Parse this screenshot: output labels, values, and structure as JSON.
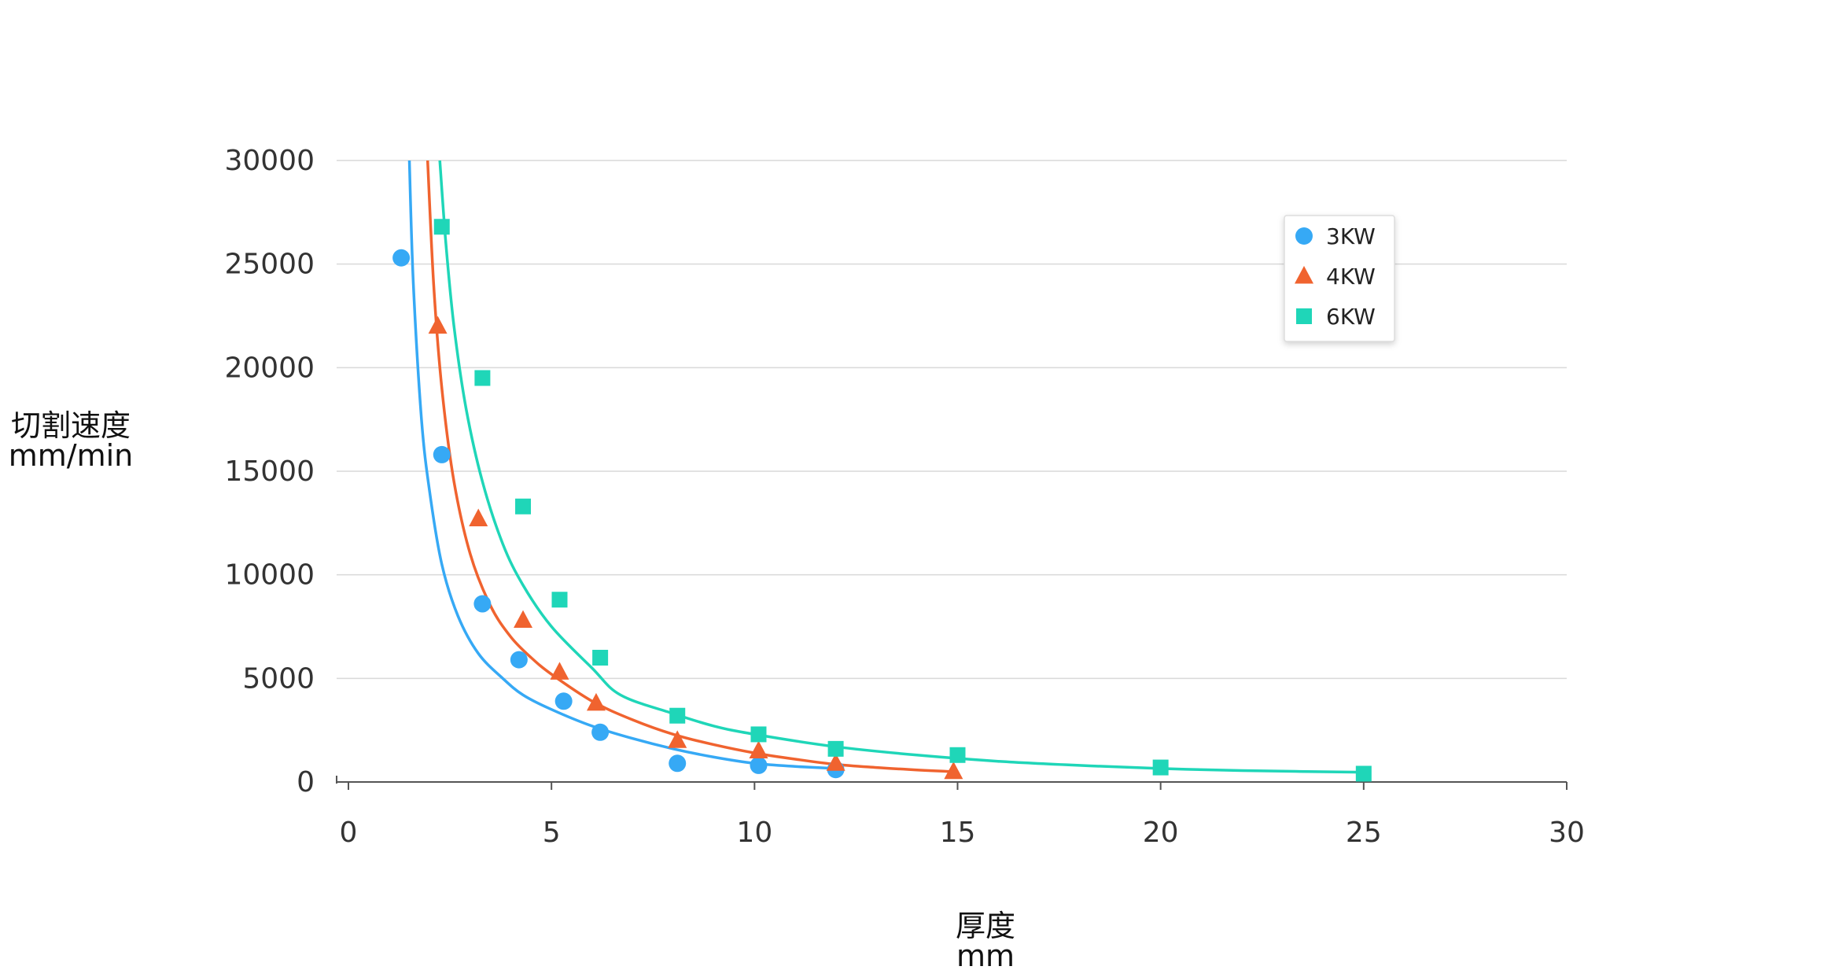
{
  "chart_data": {
    "type": "scatter",
    "title": "",
    "xlabel": [
      "厚度",
      "mm"
    ],
    "ylabel": [
      "切割速度",
      "mm/min"
    ],
    "xlim": [
      0,
      30
    ],
    "ylim": [
      0,
      30000
    ],
    "xticks": [
      "0",
      "5",
      "10",
      "15",
      "20",
      "25",
      "30"
    ],
    "yticks": [
      "0",
      "5000",
      "10000",
      "15000",
      "20000",
      "25000",
      "30000"
    ],
    "legend_position": "top-right",
    "series": [
      {
        "name": "3KW",
        "color": "#36a9f5",
        "marker": "circle",
        "points": [
          [
            1.3,
            25300
          ],
          [
            2.3,
            15800
          ],
          [
            3.3,
            8600
          ],
          [
            4.2,
            5900
          ],
          [
            5.3,
            3900
          ],
          [
            6.2,
            2400
          ],
          [
            8.1,
            900
          ],
          [
            10.1,
            800
          ],
          [
            12.0,
            600
          ]
        ],
        "fit": [
          [
            1.5,
            30000
          ],
          [
            1.6,
            24000
          ],
          [
            1.8,
            17500
          ],
          [
            2.0,
            14000
          ],
          [
            2.3,
            10500
          ],
          [
            2.7,
            8000
          ],
          [
            3.2,
            6200
          ],
          [
            3.8,
            5000
          ],
          [
            4.3,
            4200
          ],
          [
            5.0,
            3500
          ],
          [
            6.0,
            2700
          ],
          [
            7.0,
            2100
          ],
          [
            8.0,
            1600
          ],
          [
            9.0,
            1200
          ],
          [
            10.0,
            900
          ],
          [
            11.0,
            750
          ],
          [
            12.0,
            650
          ]
        ]
      },
      {
        "name": "4KW",
        "color": "#f0632f",
        "marker": "triangle",
        "points": [
          [
            2.2,
            22000
          ],
          [
            3.2,
            12700
          ],
          [
            4.3,
            7800
          ],
          [
            5.2,
            5300
          ],
          [
            6.1,
            3800
          ],
          [
            8.1,
            2000
          ],
          [
            10.1,
            1500
          ],
          [
            12.0,
            900
          ],
          [
            14.9,
            500
          ]
        ],
        "fit": [
          [
            1.95,
            30000
          ],
          [
            2.1,
            24000
          ],
          [
            2.3,
            19000
          ],
          [
            2.6,
            14500
          ],
          [
            3.0,
            11000
          ],
          [
            3.5,
            8500
          ],
          [
            4.0,
            7000
          ],
          [
            4.5,
            6000
          ],
          [
            5.0,
            5200
          ],
          [
            6.0,
            3900
          ],
          [
            7.0,
            3000
          ],
          [
            8.0,
            2300
          ],
          [
            9.0,
            1800
          ],
          [
            10.0,
            1400
          ],
          [
            11.0,
            1100
          ],
          [
            12.0,
            850
          ],
          [
            13.0,
            700
          ],
          [
            14.0,
            580
          ],
          [
            14.9,
            500
          ]
        ]
      },
      {
        "name": "6KW",
        "color": "#1fd6b8",
        "marker": "square",
        "points": [
          [
            2.3,
            26800
          ],
          [
            3.3,
            19500
          ],
          [
            4.3,
            13300
          ],
          [
            5.2,
            8800
          ],
          [
            6.2,
            6000
          ],
          [
            8.1,
            3200
          ],
          [
            10.1,
            2300
          ],
          [
            12.0,
            1600
          ],
          [
            15.0,
            1300
          ],
          [
            20.0,
            700
          ],
          [
            25.0,
            400
          ]
        ],
        "fit": [
          [
            2.25,
            30000
          ],
          [
            2.4,
            26000
          ],
          [
            2.6,
            22000
          ],
          [
            2.9,
            18000
          ],
          [
            3.3,
            14500
          ],
          [
            3.8,
            11500
          ],
          [
            4.3,
            9500
          ],
          [
            5.0,
            7500
          ],
          [
            6.0,
            5500
          ],
          [
            6.7,
            4200
          ],
          [
            8.0,
            3300
          ],
          [
            9.0,
            2700
          ],
          [
            10.0,
            2300
          ],
          [
            12.0,
            1700
          ],
          [
            14.0,
            1300
          ],
          [
            16.0,
            1000
          ],
          [
            18.0,
            800
          ],
          [
            20.0,
            650
          ],
          [
            22.0,
            550
          ],
          [
            25.0,
            470
          ]
        ]
      }
    ]
  }
}
